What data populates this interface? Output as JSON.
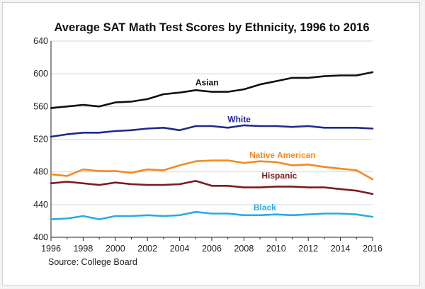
{
  "chart_data": {
    "type": "line",
    "title": "Average SAT Math Test Scores by Ethnicity, 1996 to 2016",
    "source": "Source: College Board",
    "xlabel": "",
    "ylabel": "",
    "xlim": [
      1996,
      2016
    ],
    "ylim": [
      400,
      640
    ],
    "x_ticks": [
      "1996",
      "1998",
      "2000",
      "2002",
      "2004",
      "2006",
      "2008",
      "2010",
      "2012",
      "2014",
      "2016"
    ],
    "y_ticks": [
      "400",
      "440",
      "480",
      "520",
      "560",
      "600",
      "640"
    ],
    "grid": true,
    "x": [
      1996,
      1997,
      1998,
      1999,
      2000,
      2001,
      2002,
      2003,
      2004,
      2005,
      2006,
      2007,
      2008,
      2009,
      2010,
      2011,
      2012,
      2013,
      2014,
      2015,
      2016
    ],
    "series": [
      {
        "name": "Asian",
        "color": "#111111",
        "label_x": 2005.7,
        "label_y": 586,
        "values": [
          558,
          560,
          562,
          560,
          565,
          566,
          569,
          575,
          577,
          580,
          578,
          578,
          581,
          587,
          591,
          595,
          595,
          597,
          598,
          598,
          602
        ]
      },
      {
        "name": "White",
        "color": "#1f2a8c",
        "label_x": 2007.7,
        "label_y": 541,
        "values": [
          523,
          526,
          528,
          528,
          530,
          531,
          533,
          534,
          531,
          536,
          536,
          534,
          537,
          536,
          536,
          535,
          536,
          534,
          534,
          534,
          533
        ]
      },
      {
        "name": "Native American",
        "color": "#f5891f",
        "label_x": 2010.4,
        "label_y": 497,
        "values": [
          477,
          475,
          483,
          481,
          481,
          479,
          483,
          482,
          488,
          493,
          494,
          494,
          491,
          493,
          492,
          488,
          489,
          486,
          484,
          482,
          471
        ]
      },
      {
        "name": "Hispanic",
        "color": "#7a1d1d",
        "label_x": 2010.2,
        "label_y": 472,
        "values": [
          466,
          468,
          466,
          464,
          467,
          465,
          464,
          464,
          465,
          469,
          463,
          463,
          461,
          461,
          462,
          462,
          461,
          461,
          459,
          457,
          453
        ]
      },
      {
        "name": "Black",
        "color": "#29abe2",
        "label_x": 2009.3,
        "label_y": 433,
        "values": [
          422,
          423,
          426,
          422,
          426,
          426,
          427,
          426,
          427,
          431,
          429,
          429,
          427,
          427,
          428,
          427,
          428,
          429,
          429,
          428,
          425
        ]
      }
    ]
  }
}
